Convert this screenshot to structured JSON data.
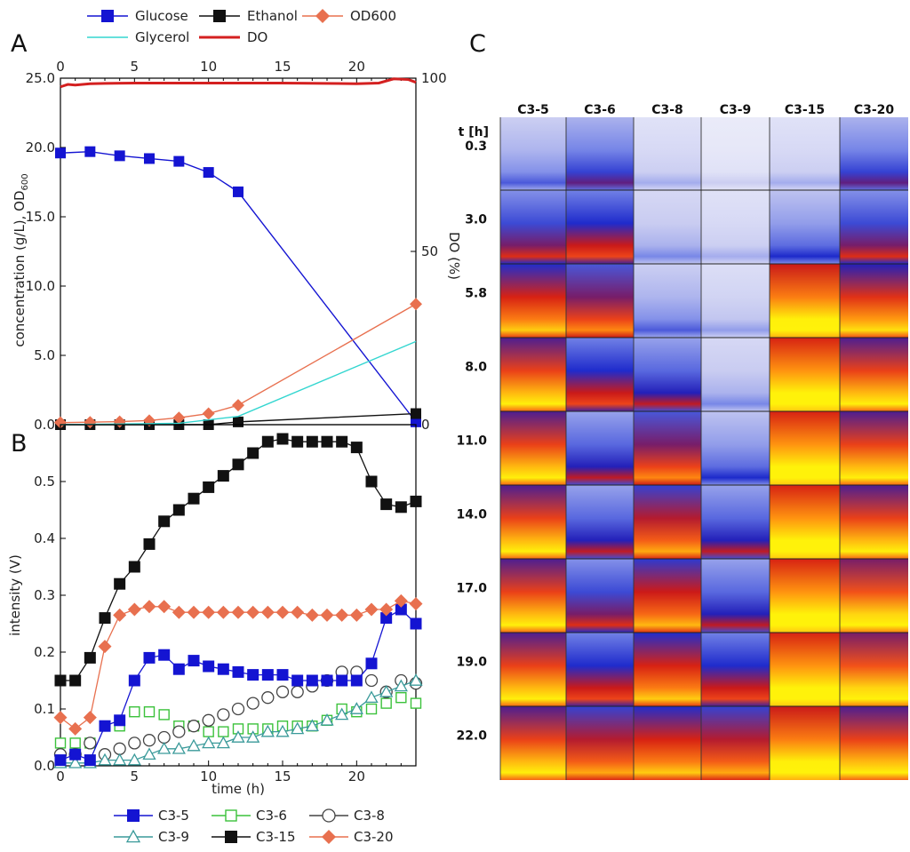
{
  "panels": {
    "a": "A",
    "b": "B",
    "c": "C"
  },
  "colors": {
    "glucose": "#1414d2",
    "ethanol": "#111111",
    "od600": "#e8704f",
    "glycerol": "#33d6d0",
    "do": "#d42020",
    "c3_5": "#1414d2",
    "c3_6": "#3cc23c",
    "c3_8": "#444444",
    "c3_9": "#3a9a9a",
    "c3_15": "#111111",
    "c3_20": "#e8704f"
  },
  "chart_data": [
    {
      "type": "line",
      "panel": "A",
      "legend": [
        "Glucose",
        "Ethanol",
        "OD600",
        "Glycerol",
        "DO"
      ],
      "ylabel_left": "concentration (g/L), OD",
      "ylabel_left_sub": "600",
      "ylabel_right": "DO (%)",
      "xlim": [
        0,
        24
      ],
      "ylim_left": [
        0,
        25
      ],
      "ylim_right": [
        0,
        100
      ],
      "x_ticks": [
        "0",
        "5",
        "10",
        "15",
        "20"
      ],
      "y_left_ticks": [
        "0.0",
        "5.0",
        "10.0",
        "15.0",
        "20.0",
        "25.0"
      ],
      "y_right_ticks": [
        "0",
        "50",
        "100"
      ],
      "series": [
        {
          "name": "Glucose",
          "color_key": "glucose",
          "marker": "square-filled",
          "axis": "left",
          "x": [
            0,
            2,
            4,
            6,
            8,
            10,
            12,
            24
          ],
          "y": [
            19.6,
            19.7,
            19.4,
            19.2,
            19.0,
            18.2,
            16.8,
            0.2
          ]
        },
        {
          "name": "Ethanol",
          "color_key": "ethanol",
          "marker": "square-filled",
          "axis": "left",
          "x": [
            0,
            2,
            4,
            6,
            8,
            10,
            12,
            24
          ],
          "y": [
            0,
            0,
            0,
            0,
            0,
            0,
            0.2,
            0.8
          ]
        },
        {
          "name": "OD600",
          "color_key": "od600",
          "marker": "diamond-filled",
          "axis": "left",
          "x": [
            0,
            2,
            4,
            6,
            8,
            10,
            12,
            24
          ],
          "y": [
            0.15,
            0.18,
            0.22,
            0.3,
            0.5,
            0.8,
            1.4,
            8.7
          ]
        },
        {
          "name": "Glycerol",
          "color_key": "glycerol",
          "marker": "none",
          "axis": "left",
          "x": [
            0,
            8,
            12,
            24
          ],
          "y": [
            0,
            0.1,
            0.6,
            6.0
          ]
        },
        {
          "name": "DO",
          "color_key": "do",
          "marker": "none",
          "axis": "right",
          "x": [
            0,
            0.5,
            1,
            2,
            3,
            5,
            10,
            15,
            20,
            21.5,
            22.5,
            23.5,
            24
          ],
          "y": [
            97.5,
            98.2,
            98.0,
            98.4,
            98.5,
            98.6,
            98.6,
            98.6,
            98.4,
            98.6,
            99.8,
            99.6,
            98.8
          ]
        }
      ]
    },
    {
      "type": "scatter",
      "panel": "B",
      "legend": [
        "C3-5",
        "C3-6",
        "C3-8",
        "C3-9",
        "C3-15",
        "C3-20"
      ],
      "xlabel": "time (h)",
      "ylabel": "intensity (V)",
      "xlim": [
        0,
        24
      ],
      "ylim": [
        0,
        0.6
      ],
      "x_ticks": [
        "0",
        "5",
        "10",
        "15",
        "20"
      ],
      "y_ticks": [
        "0.0",
        "0.1",
        "0.2",
        "0.3",
        "0.4",
        "0.5"
      ],
      "x": [
        0,
        1,
        2,
        3,
        4,
        5,
        6,
        7,
        8,
        9,
        10,
        11,
        12,
        13,
        14,
        15,
        16,
        17,
        18,
        19,
        20,
        21,
        22,
        23,
        24
      ],
      "series": [
        {
          "name": "C3-5",
          "color_key": "c3_5",
          "marker": "square-filled",
          "line": true,
          "y": [
            0.01,
            0.02,
            0.01,
            0.07,
            0.08,
            0.15,
            0.19,
            0.195,
            0.17,
            0.185,
            0.175,
            0.17,
            0.165,
            0.16,
            0.16,
            0.16,
            0.15,
            0.15,
            0.15,
            0.15,
            0.15,
            0.18,
            0.26,
            0.275,
            0.25
          ]
        },
        {
          "name": "C3-6",
          "color_key": "c3_6",
          "marker": "square-open",
          "line": false,
          "y": [
            0.04,
            0.04,
            0.04,
            0.07,
            0.07,
            0.095,
            0.095,
            0.09,
            0.07,
            0.07,
            0.06,
            0.06,
            0.065,
            0.065,
            0.065,
            0.07,
            0.07,
            0.07,
            0.08,
            0.1,
            0.095,
            0.1,
            0.11,
            0.12,
            0.11
          ]
        },
        {
          "name": "C3-8",
          "color_key": "c3_8",
          "marker": "circle-open",
          "line": false,
          "y": [
            0.02,
            0.02,
            0.04,
            0.02,
            0.03,
            0.04,
            0.045,
            0.05,
            0.06,
            0.07,
            0.08,
            0.09,
            0.1,
            0.11,
            0.12,
            0.13,
            0.13,
            0.14,
            0.15,
            0.165,
            0.165,
            0.15,
            0.13,
            0.15,
            0.145
          ]
        },
        {
          "name": "C3-9",
          "color_key": "c3_9",
          "marker": "triangle-open",
          "line": true,
          "y": [
            0.005,
            0.005,
            0.005,
            0.01,
            0.01,
            0.01,
            0.02,
            0.03,
            0.03,
            0.035,
            0.04,
            0.04,
            0.05,
            0.05,
            0.06,
            0.06,
            0.065,
            0.07,
            0.08,
            0.09,
            0.1,
            0.12,
            0.13,
            0.14,
            0.15
          ]
        },
        {
          "name": "C3-15",
          "color_key": "c3_15",
          "marker": "square-filled",
          "line": true,
          "y": [
            0.15,
            0.15,
            0.19,
            0.26,
            0.32,
            0.35,
            0.39,
            0.43,
            0.45,
            0.47,
            0.49,
            0.51,
            0.53,
            0.55,
            0.57,
            0.575,
            0.57,
            0.57,
            0.57,
            0.57,
            0.56,
            0.5,
            0.46,
            0.455,
            0.465
          ]
        },
        {
          "name": "C3-20",
          "color_key": "c3_20",
          "marker": "diamond-filled",
          "line": true,
          "y": [
            0.085,
            0.065,
            0.085,
            0.21,
            0.265,
            0.275,
            0.28,
            0.28,
            0.27,
            0.27,
            0.27,
            0.27,
            0.27,
            0.27,
            0.27,
            0.27,
            0.27,
            0.265,
            0.265,
            0.265,
            0.265,
            0.275,
            0.275,
            0.29,
            0.285
          ]
        }
      ]
    },
    {
      "type": "heatmap",
      "panel": "C",
      "row_header": "t [h]",
      "columns": [
        "C3-5",
        "C3-6",
        "C3-8",
        "C3-9",
        "C3-15",
        "C3-20"
      ],
      "rows": [
        "0.3",
        "3.0",
        "5.8",
        "8.0",
        "11.0",
        "14.0",
        "17.0",
        "19.0",
        "22.0"
      ],
      "color_scale": [
        "#f4f4fb",
        "#c7caf1",
        "#6f7fe6",
        "#1420c8",
        "#d21a12",
        "#f0491a",
        "#ff8e10",
        "#ffd410",
        "#fff20a"
      ],
      "cells": [
        [
          0.2,
          0.3,
          0.1,
          0.05,
          0.1,
          0.3
        ],
        [
          0.4,
          0.45,
          0.15,
          0.1,
          0.25,
          0.4
        ],
        [
          0.65,
          0.55,
          0.2,
          0.12,
          0.9,
          0.7
        ],
        [
          0.75,
          0.45,
          0.35,
          0.15,
          0.95,
          0.75
        ],
        [
          0.75,
          0.35,
          0.55,
          0.25,
          0.95,
          0.75
        ],
        [
          0.75,
          0.35,
          0.6,
          0.35,
          0.95,
          0.75
        ],
        [
          0.75,
          0.4,
          0.62,
          0.35,
          0.95,
          0.8
        ],
        [
          0.75,
          0.45,
          0.65,
          0.45,
          0.95,
          0.8
        ],
        [
          0.75,
          0.6,
          0.65,
          0.6,
          0.9,
          0.75
        ]
      ]
    }
  ]
}
